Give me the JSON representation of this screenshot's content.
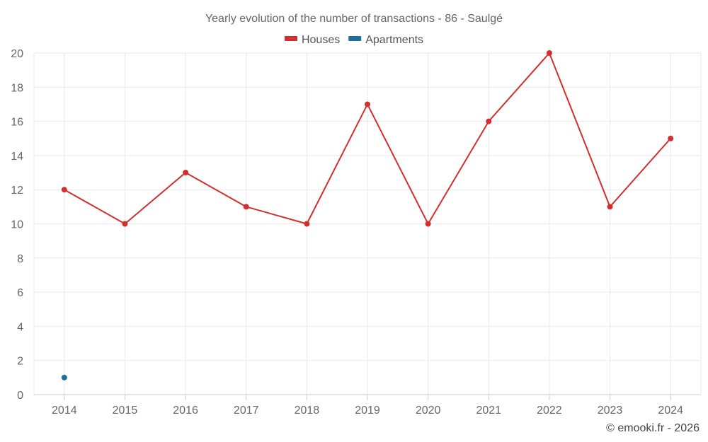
{
  "chart_data": {
    "type": "line",
    "title": "Yearly evolution of the number of transactions - 86 - Saulgé",
    "categories": [
      "2014",
      "2015",
      "2016",
      "2017",
      "2018",
      "2019",
      "2020",
      "2021",
      "2022",
      "2023",
      "2024"
    ],
    "ylim": [
      0,
      20
    ],
    "yticks": [
      0,
      2,
      4,
      6,
      8,
      10,
      12,
      14,
      16,
      18,
      20
    ],
    "grid": true,
    "legend_position": "top-center",
    "series": [
      {
        "name": "Houses",
        "color": "#d32f2f",
        "values": [
          12,
          10,
          13,
          11,
          10,
          17,
          10,
          16,
          20,
          11,
          15
        ]
      },
      {
        "name": "Apartments",
        "color": "#1f6e9c",
        "values": [
          1,
          null,
          null,
          null,
          null,
          null,
          null,
          null,
          null,
          null,
          null
        ]
      }
    ],
    "xlabel": "",
    "ylabel": ""
  },
  "credit": "© emooki.fr - 2026"
}
